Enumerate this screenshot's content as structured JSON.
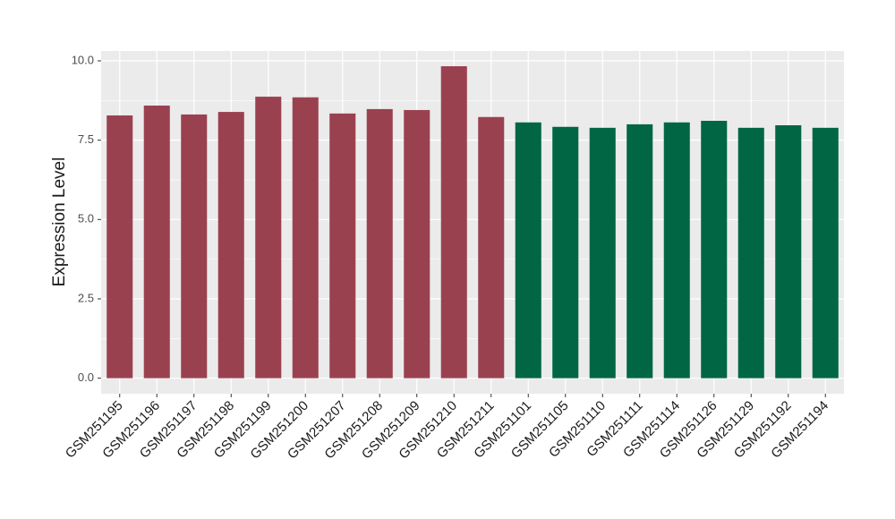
{
  "chart_data": {
    "type": "bar",
    "y_label": "Expression Level",
    "categories": [
      "GSM251195",
      "GSM251196",
      "GSM251197",
      "GSM251198",
      "GSM251199",
      "GSM251200",
      "GSM251207",
      "GSM251208",
      "GSM251209",
      "GSM251210",
      "GSM251211",
      "GSM251101",
      "GSM251105",
      "GSM251110",
      "GSM251111",
      "GSM251114",
      "GSM251126",
      "GSM251129",
      "GSM251192",
      "GSM251194"
    ],
    "values": [
      8.28,
      8.59,
      8.31,
      8.39,
      8.87,
      8.85,
      8.34,
      8.48,
      8.45,
      9.83,
      8.23,
      8.06,
      7.92,
      7.89,
      8.0,
      8.06,
      8.11,
      7.89,
      7.97,
      7.89
    ],
    "colors": [
      "#9a4150",
      "#9a4150",
      "#9a4150",
      "#9a4150",
      "#9a4150",
      "#9a4150",
      "#9a4150",
      "#9a4150",
      "#9a4150",
      "#9a4150",
      "#9a4150",
      "#006644",
      "#006644",
      "#006644",
      "#006644",
      "#006644",
      "#006644",
      "#006644",
      "#006644",
      "#006644"
    ],
    "ylim": [
      -0.49,
      10.31
    ],
    "yticks": [
      {
        "value": 0,
        "label": "0.0"
      },
      2.5,
      {
        "value": 5,
        "label": "5.0"
      },
      7.5,
      {
        "value": 10,
        "label": "10.0"
      }
    ],
    "grid": true
  }
}
